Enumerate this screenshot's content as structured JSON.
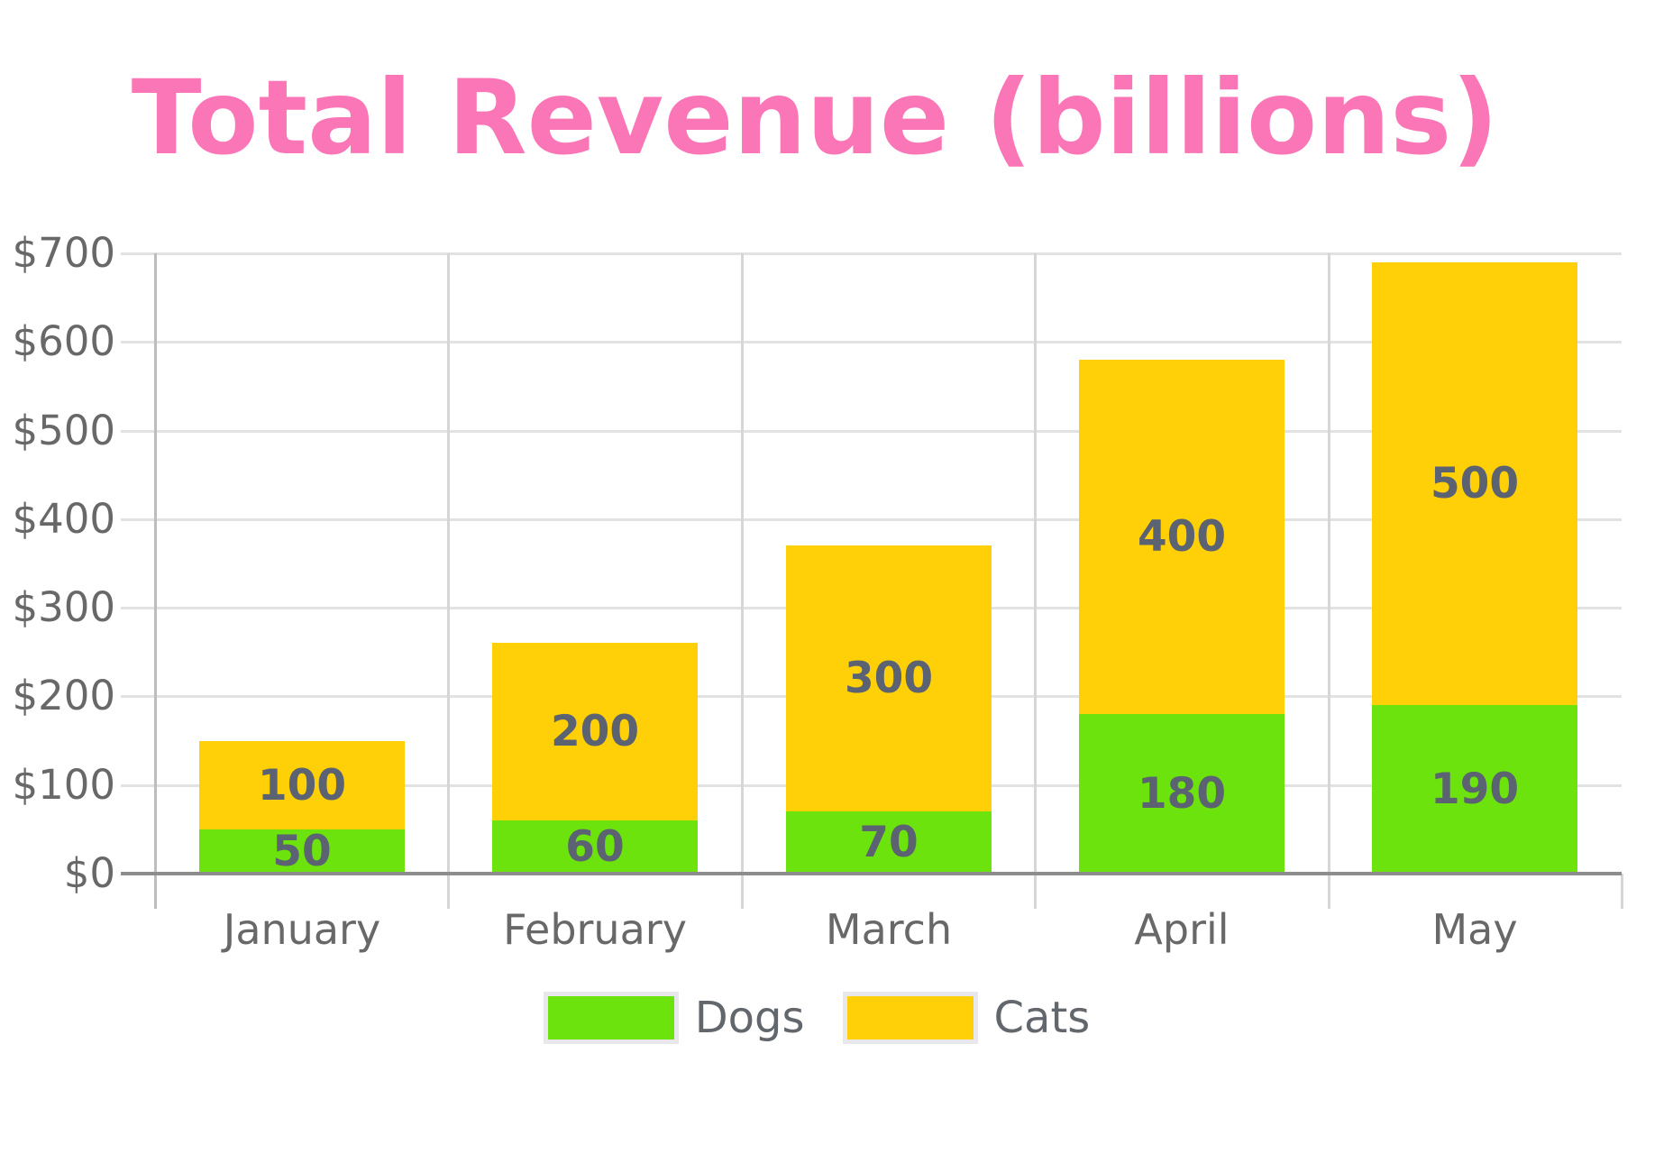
{
  "chart_data": {
    "type": "bar",
    "stacked": true,
    "title": "Total Revenue (billions)",
    "categories": [
      "January",
      "February",
      "March",
      "April",
      "May"
    ],
    "series": [
      {
        "name": "Dogs",
        "color": "#6de30d",
        "values": [
          50,
          60,
          70,
          180,
          190
        ]
      },
      {
        "name": "Cats",
        "color": "#ffd007",
        "values": [
          100,
          200,
          300,
          400,
          500
        ]
      }
    ],
    "value_labels_shown": true,
    "ylim": [
      0,
      700
    ],
    "y_tick_step": 100,
    "y_tick_labels": [
      "$0",
      "$100",
      "$200",
      "$300",
      "$400",
      "$500",
      "$600",
      "$700"
    ],
    "grid": true,
    "legend": {
      "position": "bottom",
      "entries": [
        "Dogs",
        "Cats"
      ]
    }
  },
  "colors": {
    "background": "#ffffff",
    "title": "#fb76b6",
    "dogs": "#6de30d",
    "cats": "#ffd007",
    "value_label": "#5b6271",
    "axis_label": "#686868",
    "grid_horizontal": "#e2e2e2",
    "grid_vertical": "#d6d6d6",
    "axis_line_left": "#bdbdbd",
    "axis_line_bottom": "#8d8d8d",
    "legend_swatch_border": "#e8e8ec",
    "legend_label": "#62666d"
  }
}
